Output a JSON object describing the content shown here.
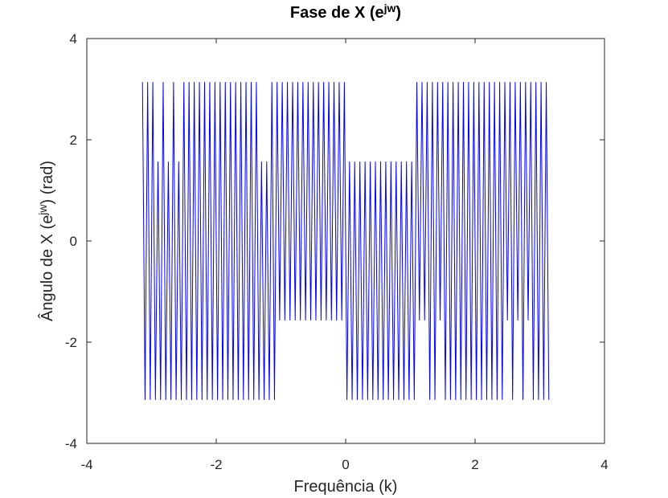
{
  "chart_data": {
    "type": "line",
    "title": [
      "Fase de X (e",
      "jw",
      ")"
    ],
    "xlabel": "Frequência (k)",
    "ylabel": [
      "Ângulo de X (e",
      "jw",
      ") (rad)"
    ],
    "xlim": [
      -4,
      4
    ],
    "xticks": [
      -4,
      -2,
      0,
      2,
      4
    ],
    "ylim": [
      -4,
      4
    ],
    "yticks": [
      -4,
      -2,
      0,
      2,
      4
    ],
    "x": [
      -3.14,
      -3.1,
      -3.06,
      -3.02,
      -2.98,
      -2.94,
      -2.9,
      -2.86,
      -2.82,
      -2.78,
      -2.74,
      -2.7,
      -2.66,
      -2.62,
      -2.58,
      -2.54,
      -2.5,
      -2.46,
      -2.42,
      -2.38,
      -2.34,
      -2.3,
      -2.26,
      -2.22,
      -2.18,
      -2.14,
      -2.1,
      -2.06,
      -2.02,
      -1.98,
      -1.94,
      -1.9,
      -1.86,
      -1.82,
      -1.78,
      -1.74,
      -1.7,
      -1.66,
      -1.62,
      -1.58,
      -1.54,
      -1.5,
      -1.46,
      -1.42,
      -1.38,
      -1.34,
      -1.3,
      -1.26,
      -1.22,
      -1.18,
      -1.14,
      -1.1,
      -1.06,
      -1.02,
      -0.98,
      -0.94,
      -0.9,
      -0.86,
      -0.82,
      -0.78,
      -0.74,
      -0.7,
      -0.66,
      -0.62,
      -0.58,
      -0.54,
      -0.5,
      -0.46,
      -0.42,
      -0.38,
      -0.34,
      -0.3,
      -0.26,
      -0.22,
      -0.18,
      -0.14,
      -0.1,
      -0.06,
      -0.02,
      0.02,
      0.06,
      0.1,
      0.14,
      0.18,
      0.22,
      0.26,
      0.3,
      0.34,
      0.38,
      0.42,
      0.46,
      0.5,
      0.54,
      0.58,
      0.62,
      0.66,
      0.7,
      0.74,
      0.78,
      0.82,
      0.86,
      0.9,
      0.94,
      0.98,
      1.02,
      1.06,
      1.1,
      1.14,
      1.18,
      1.22,
      1.26,
      1.3,
      1.34,
      1.38,
      1.42,
      1.46,
      1.5,
      1.54,
      1.58,
      1.62,
      1.66,
      1.7,
      1.74,
      1.78,
      1.82,
      1.86,
      1.9,
      1.94,
      1.98,
      2.02,
      2.06,
      2.1,
      2.14,
      2.18,
      2.22,
      2.26,
      2.3,
      2.34,
      2.38,
      2.42,
      2.46,
      2.5,
      2.54,
      2.58,
      2.62,
      2.66,
      2.7,
      2.74,
      2.78,
      2.82,
      2.86,
      2.9,
      2.94,
      2.98,
      3.02,
      3.06,
      3.1,
      3.14
    ],
    "series": [
      {
        "color": "#0000ff",
        "values": [
          3.14,
          -3.14,
          3.14,
          -3.14,
          3.14,
          -3.14,
          1.57,
          -3.14,
          3.14,
          -3.14,
          1.57,
          -3.14,
          3.14,
          -3.14,
          1.57,
          -3.14,
          3.14,
          -3.14,
          3.14,
          -3.14,
          3.14,
          -3.14,
          3.14,
          -3.14,
          3.14,
          -3.14,
          3.14,
          -3.14,
          3.14,
          -3.14,
          3.14,
          -3.14,
          3.14,
          -3.14,
          3.14,
          -3.14,
          3.14,
          -3.14,
          3.14,
          -3.14,
          3.14,
          -3.14,
          3.14,
          -3.14,
          3.14,
          -3.14,
          1.57,
          -3.14,
          1.57,
          -3.14,
          3.14,
          -3.14,
          3.14,
          -1.57,
          3.14,
          -1.57,
          3.14,
          -1.57,
          3.14,
          -1.57,
          3.14,
          -1.57,
          3.14,
          -1.57,
          3.14,
          -1.57,
          3.14,
          -1.57,
          3.14,
          -1.57,
          3.14,
          -1.57,
          3.14,
          -1.57,
          3.14,
          -1.57,
          3.14,
          -1.57,
          3.14,
          -3.14,
          1.57,
          -3.14,
          1.57,
          -3.14,
          1.57,
          -3.14,
          1.57,
          -3.14,
          1.57,
          -3.14,
          1.57,
          -3.14,
          1.57,
          -3.14,
          1.57,
          -3.14,
          1.57,
          -3.14,
          1.57,
          -3.14,
          1.57,
          -3.14,
          1.57,
          -3.14,
          1.57,
          -3.14,
          3.14,
          -1.57,
          3.14,
          -1.57,
          3.14,
          -3.14,
          3.14,
          -3.14,
          3.14,
          -1.57,
          3.14,
          -3.14,
          3.14,
          -3.14,
          3.14,
          -3.14,
          3.14,
          -3.14,
          3.14,
          -3.14,
          3.14,
          -3.14,
          3.14,
          -3.14,
          3.14,
          -3.14,
          3.14,
          -3.14,
          3.14,
          -3.14,
          3.14,
          -3.14,
          3.14,
          -3.14,
          3.14,
          -1.57,
          3.14,
          -3.14,
          3.14,
          -1.57,
          3.14,
          -3.14,
          3.14,
          -1.57,
          3.14,
          -3.14,
          3.14,
          -3.14,
          3.14,
          -3.14,
          3.14,
          -3.14
        ]
      }
    ]
  }
}
